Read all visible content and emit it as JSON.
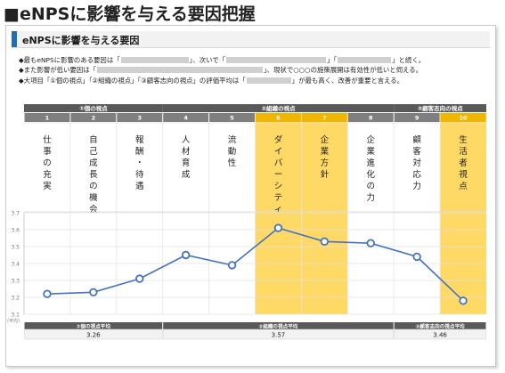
{
  "page_title": "■eNPSに影響を与える要因把握",
  "section_title": "eNPSに影響を与える要因",
  "bullets": [
    {
      "segments": [
        "◆最もeNPSに影響のある要因は「",
        "」、次いで「",
        "」「",
        "」と続く。"
      ]
    },
    {
      "segments": [
        "◆また影響が低い要因は「",
        "」、現状で○○○の施策展開は有効性が低いと伺える。"
      ]
    },
    {
      "segments": [
        "◆大項目「①個の視点」「②組織の視点」「③顧客志向の視点」の評価平均は「",
        "」が最も高く、改善が重要と言える。"
      ]
    }
  ],
  "groups": [
    {
      "label": "①個の視点",
      "avg_label": "①個の視点平均",
      "avg_value": "3.26"
    },
    {
      "label": "②組織の視点",
      "avg_label": "②組織の視点平均",
      "avg_value": "3.57"
    },
    {
      "label": "③顧客志向の視点",
      "avg_label": "③顧客志向の視点平均",
      "avg_value": "3.46"
    }
  ],
  "y_unit_label": "(平均)",
  "colors": {
    "header_gray": "#7f7f7f",
    "highlight": "#ffd966",
    "line": "#4472c4",
    "accent": "#1f6fb5"
  },
  "chart_data": {
    "type": "line",
    "categories": [
      "1",
      "2",
      "3",
      "4",
      "5",
      "6",
      "7",
      "8",
      "9",
      "10"
    ],
    "category_labels": [
      "仕事の充実",
      "自己成長の機会",
      "報酬・待遇",
      "人材育成",
      "流動性",
      "ダイバーシティ",
      "企業方針",
      "企業進化の力",
      "顧客対応力",
      "生活者視点"
    ],
    "series": [
      {
        "values": [
          3.22,
          3.23,
          3.31,
          3.45,
          3.39,
          3.61,
          3.53,
          3.52,
          3.44,
          3.18
        ]
      }
    ],
    "highlighted": [
      6,
      7,
      10
    ],
    "ylim": [
      3.1,
      3.7
    ],
    "yticks": [
      "3.1",
      "3.2",
      "3.3",
      "3.4",
      "3.5",
      "3.6",
      "3.7"
    ],
    "grid": true
  }
}
